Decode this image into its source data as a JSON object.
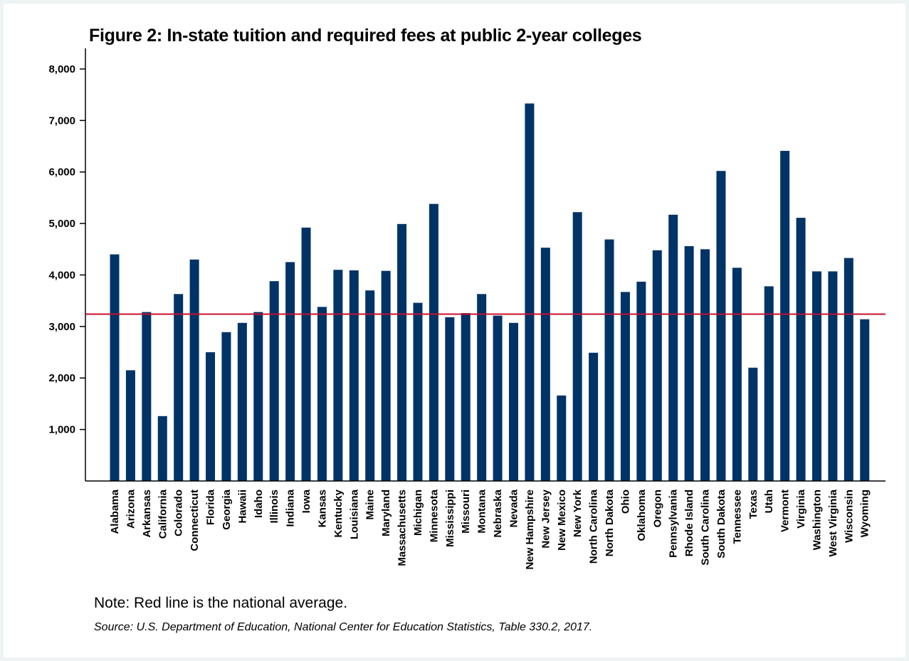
{
  "chart_data": {
    "type": "bar",
    "title": "Figure 2: In-state tuition and required fees at public 2-year colleges",
    "xlabel": "",
    "ylabel": "",
    "ylim": [
      0,
      8400
    ],
    "yticks": [
      1000,
      2000,
      3000,
      4000,
      5000,
      6000,
      7000,
      8000
    ],
    "ytick_labels": [
      "1,000",
      "2,000",
      "3,000",
      "4,000",
      "5,000",
      "6,000",
      "7,000",
      "8,000"
    ],
    "grid": false,
    "bar_color": "#003366",
    "reference_line": {
      "name": "National average",
      "value": 3240,
      "color": "#c8102e"
    },
    "categories": [
      "Alabama",
      "Arizona",
      "Arkansas",
      "California",
      "Colorado",
      "Connecticut",
      "Florida",
      "Georgia",
      "Hawaii",
      "Idaho",
      "Illinois",
      "Indiana",
      "Iowa",
      "Kansas",
      "Kentucky",
      "Louisiana",
      "Maine",
      "Maryland",
      "Massachusetts",
      "Michigan",
      "Minnesota",
      "Mississippi",
      "Missouri",
      "Montana",
      "Nebraska",
      "Nevada",
      "New Hampshire",
      "New Jersey",
      "New Mexico",
      "New York",
      "North Carolina",
      "North Dakota",
      "Ohio",
      "Oklahoma",
      "Oregon",
      "Pennsylvania",
      "Rhode Island",
      "South Carolina",
      "South Dakota",
      "Tennessee",
      "Texas",
      "Utah",
      "Vermont",
      "Virginia",
      "Washington",
      "West Virginia",
      "Wisconsin",
      "Wyoming"
    ],
    "values": [
      4400,
      2150,
      3280,
      1260,
      3630,
      4300,
      2500,
      2890,
      3070,
      3280,
      3880,
      4250,
      4920,
      3380,
      4100,
      4090,
      3700,
      4080,
      4990,
      3460,
      5380,
      3180,
      3260,
      3630,
      3210,
      3070,
      7330,
      4530,
      1660,
      5220,
      2490,
      4690,
      3670,
      3870,
      4480,
      5170,
      4560,
      4500,
      6020,
      4140,
      2200,
      3780,
      6410,
      5110,
      4070,
      4070,
      4330,
      3140
    ]
  },
  "note": "Note: Red line is the national average.",
  "source": "Source: U.S. Department of Education, National Center for Education Statistics, Table 330.2, 2017."
}
